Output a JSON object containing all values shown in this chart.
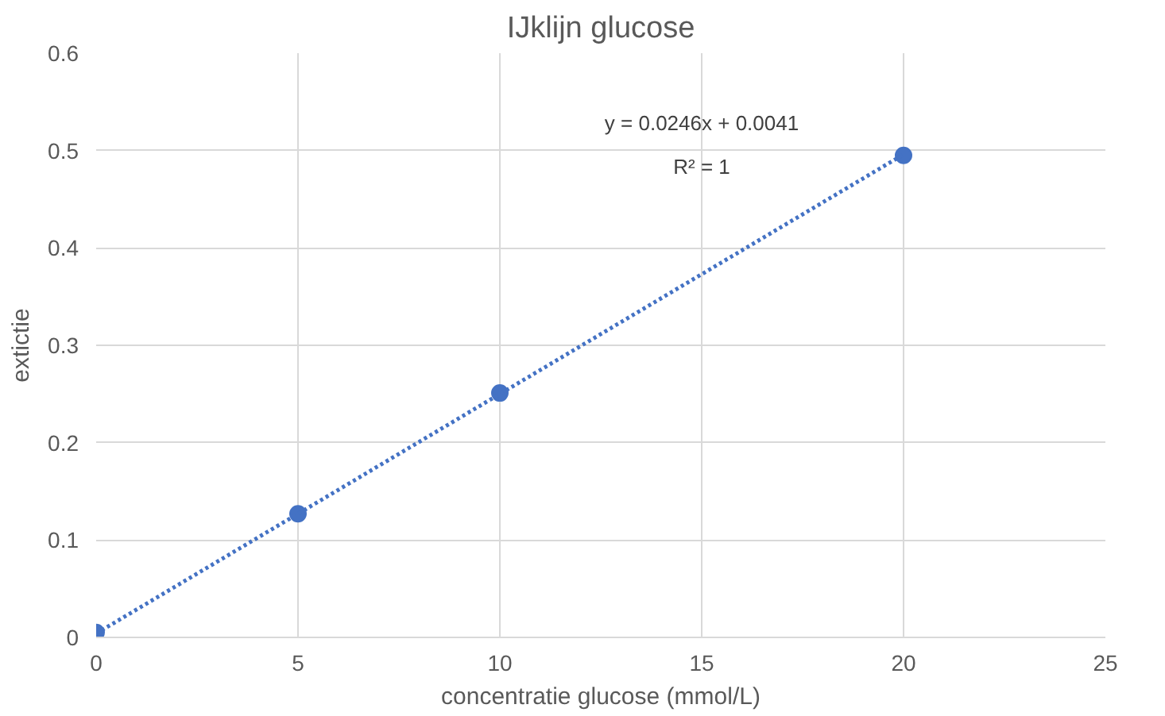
{
  "chart_data": {
    "type": "scatter",
    "title": "IJklijn glucose",
    "xlabel": "concentratie glucose (mmol/L)",
    "ylabel": "extictie",
    "xlim": [
      0,
      25
    ],
    "xticks": [
      0,
      5,
      10,
      15,
      20,
      25
    ],
    "ylim": [
      0,
      0.6
    ],
    "yticks": [
      0,
      0.1,
      0.2,
      0.3,
      0.4,
      0.5,
      0.6
    ],
    "grid": true,
    "series": [
      {
        "color": "#4472c4",
        "marker": "circle",
        "x": [
          0,
          5,
          10,
          20
        ],
        "values": [
          0.005,
          0.127,
          0.251,
          0.495
        ]
      },
      {
        "type": "line",
        "color": "#4472c4",
        "marker": "none",
        "line_style": "dotted",
        "x": [
          0,
          20
        ],
        "values": [
          0.004,
          0.496
        ]
      }
    ],
    "annotations": [
      "y = 0.0246x + 0.0041",
      "R² = 1"
    ]
  }
}
